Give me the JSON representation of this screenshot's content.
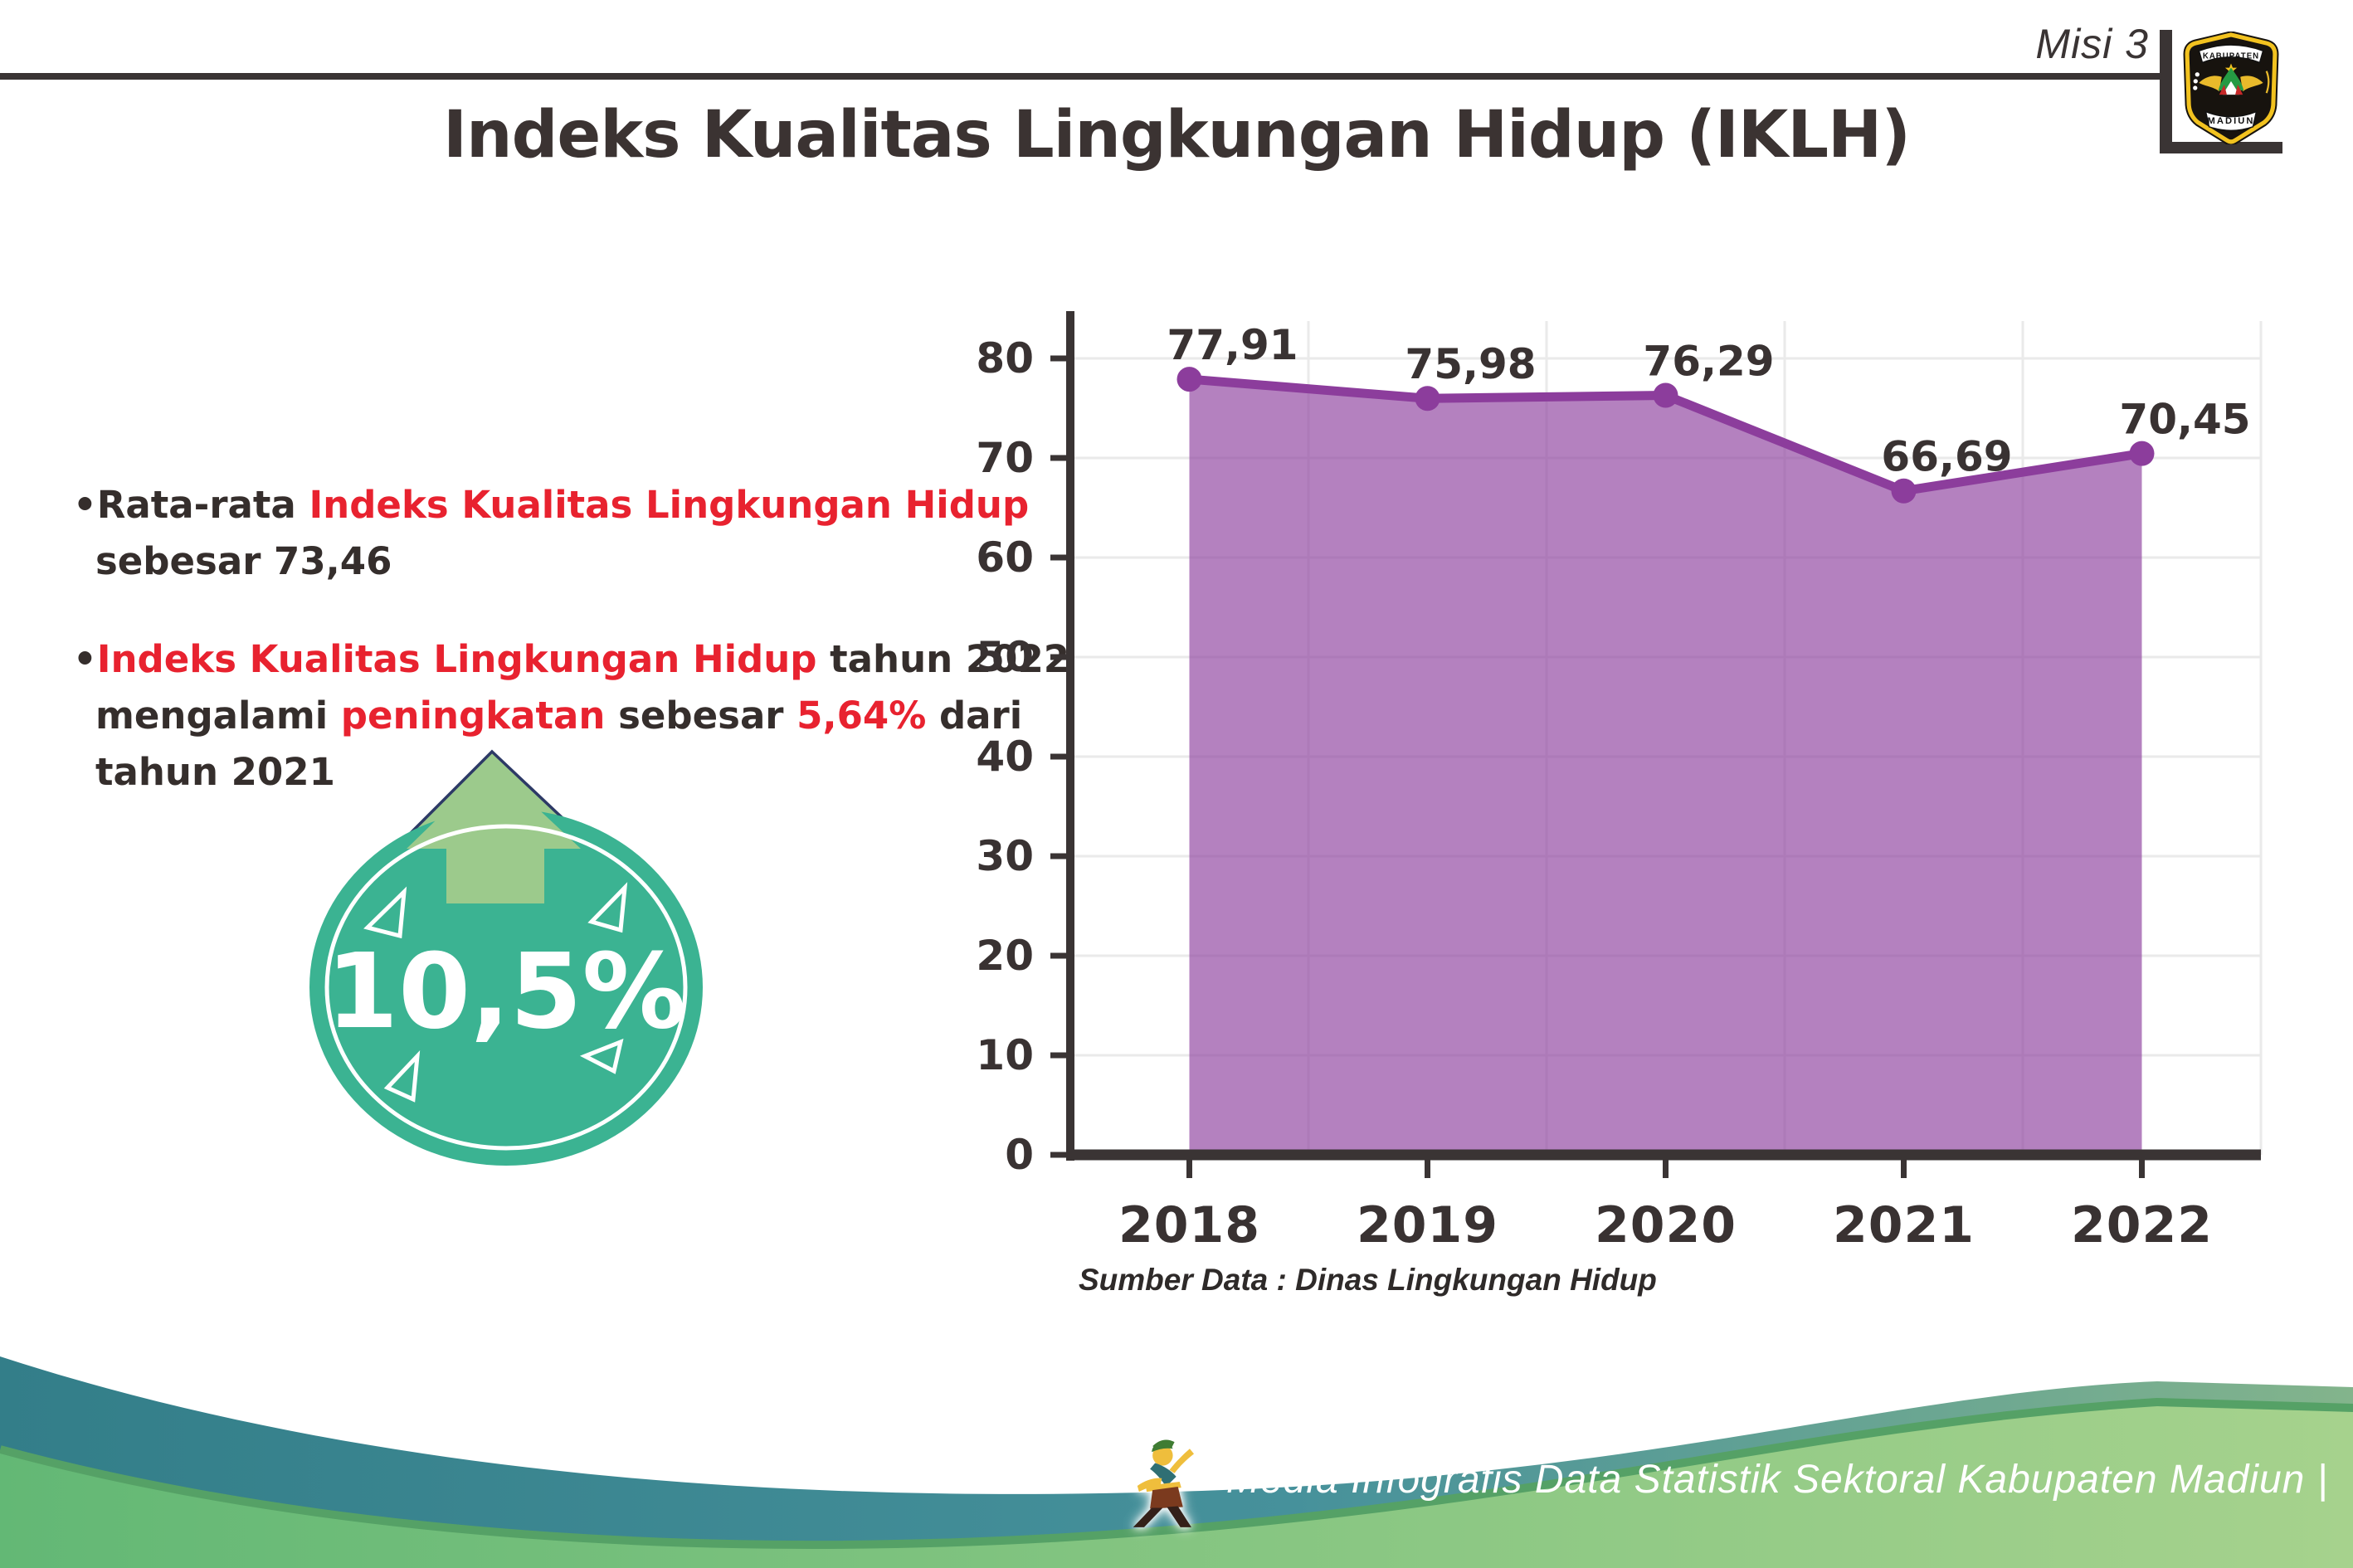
{
  "header": {
    "misi_label": "Misi 3",
    "title": "Indeks Kualitas Lingkungan Hidup (IKLH)",
    "logo": {
      "top_text": "KABUPATEN",
      "bottom_text": "MADIUN"
    }
  },
  "bullets": {
    "b1": {
      "l1s1": "•Rata-rata ",
      "l1s2": "Indeks Kualitas Lingkungan Hidup",
      "l2s1": "sebesar 73,46"
    },
    "b2": {
      "l1s1": "•",
      "l1s2": "Indeks Kualitas Lingkungan Hidup",
      "l1s3": " tahun 2022",
      "l2s1": "mengalami ",
      "l2s2": "peningkatan",
      "l2s3": " sebesar ",
      "l2s4": "5,64%",
      "l2s5": " dari",
      "l3s1": "tahun 2021"
    }
  },
  "badge": {
    "value": "10,5%"
  },
  "chart_data": {
    "type": "area",
    "categories": [
      "2018",
      "2019",
      "2020",
      "2021",
      "2022"
    ],
    "values": [
      77.91,
      75.98,
      76.29,
      66.69,
      70.45
    ],
    "labels": [
      "77,91",
      "75,98",
      "76,29",
      "66,69",
      "70,45"
    ],
    "yticks": [
      0,
      10,
      20,
      30,
      40,
      50,
      60,
      70,
      80
    ],
    "ylim": [
      0,
      80
    ],
    "grid": true,
    "legend": "none",
    "title": "",
    "xlabel": "",
    "ylabel": "",
    "line_color": "#8C3D9C",
    "fill_color": "rgba(140,61,156,0.65)",
    "axis_color": "#3a3434",
    "source": "Sumber Data : Dinas Lingkungan Hidup"
  },
  "footer": {
    "credit": "Media Infografis Data Statistik Sektoral Kabupaten Madiun |"
  },
  "colors": {
    "accent_red": "#e8222f",
    "badge_teal": "#3bb392",
    "arrow_green": "#9cca8c",
    "footer_teal": "#337e89",
    "footer_green": "#63b875"
  }
}
